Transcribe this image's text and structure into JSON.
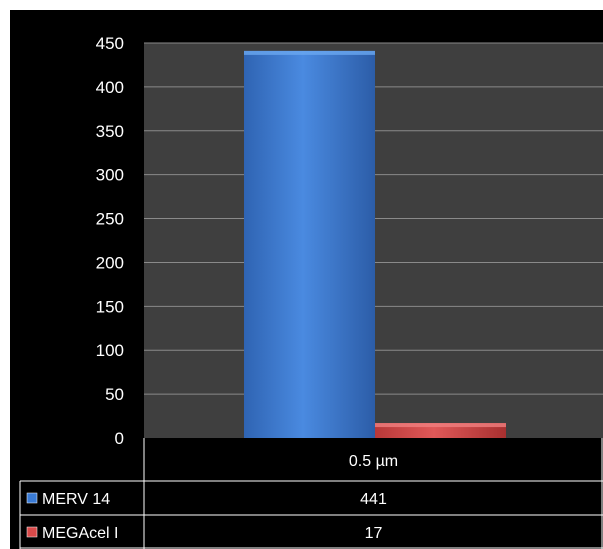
{
  "chart_data": {
    "type": "bar",
    "categories": [
      "0.5 µm"
    ],
    "series": [
      {
        "name": "MERV 14",
        "values": [
          441
        ],
        "color": "#3a7bd5"
      },
      {
        "name": "MEGAcel I",
        "values": [
          17
        ],
        "color": "#d94a4a"
      }
    ],
    "y_ticks": [
      "0",
      "50",
      "100",
      "150",
      "200",
      "250",
      "300",
      "350",
      "400",
      "450"
    ],
    "ylim": [
      0,
      450
    ],
    "grid": true,
    "legend": "data-table",
    "background_color": "#000000",
    "plot_background_color": "#3f3f3f",
    "gridline_color": "#8a8a8a",
    "text_color": "#ffffff"
  }
}
